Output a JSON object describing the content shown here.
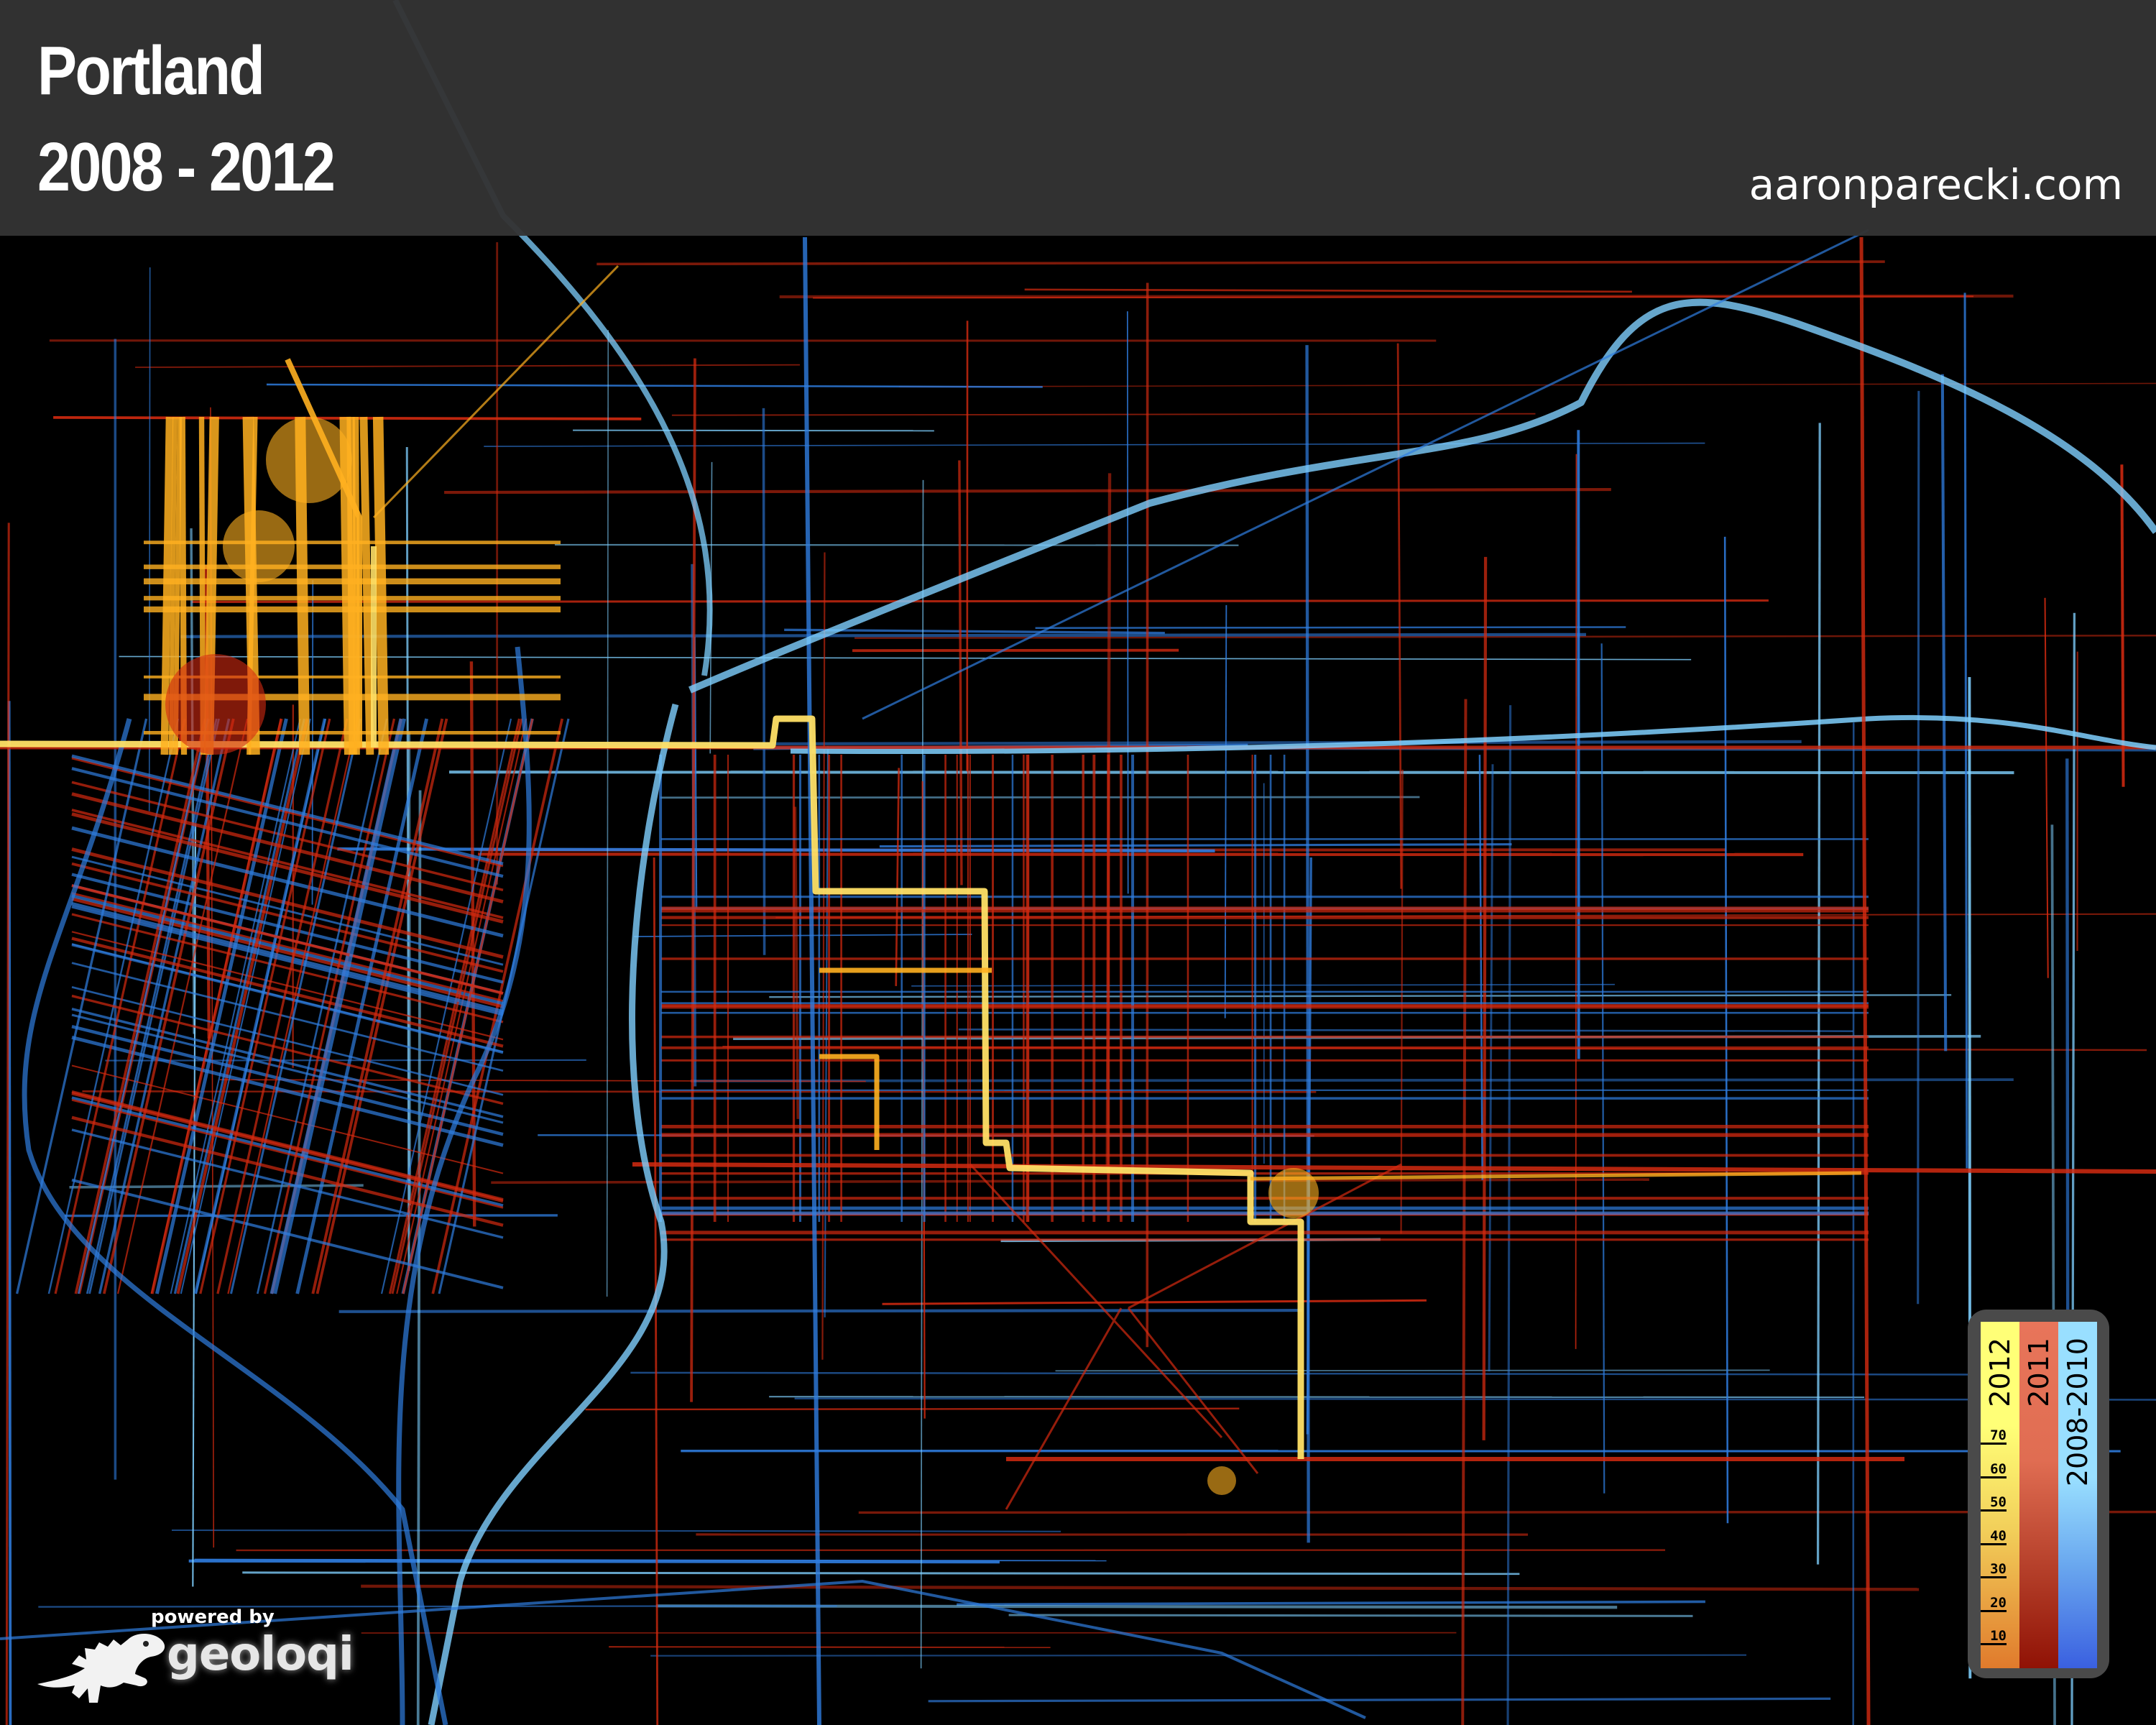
{
  "header": {
    "title": "Portland",
    "years": "2008 - 2012",
    "site": "aaronparecki.com"
  },
  "legend": {
    "columns": [
      {
        "label": "2012",
        "color_top": "#ffff77",
        "color_bottom": "#e07a2c"
      },
      {
        "label": "2011",
        "color_top": "#e8755a",
        "color_bottom": "#901205"
      },
      {
        "label": "2008-2010",
        "color_top": "#99dfff",
        "color_bottom": "#3a60e0"
      }
    ],
    "ticks": [
      "70",
      "60",
      "50",
      "40",
      "30",
      "20",
      "10"
    ]
  },
  "branding": {
    "powered_by": "powered by",
    "name": "geoloqi"
  },
  "map": {
    "background": "#000000",
    "track_colors": {
      "2012": "#ffb020",
      "2012_bright": "#ffe066",
      "2011": "#d42a10",
      "2008-2010": "#2f7de0",
      "2008-2010_light": "#7fd0ff"
    }
  }
}
